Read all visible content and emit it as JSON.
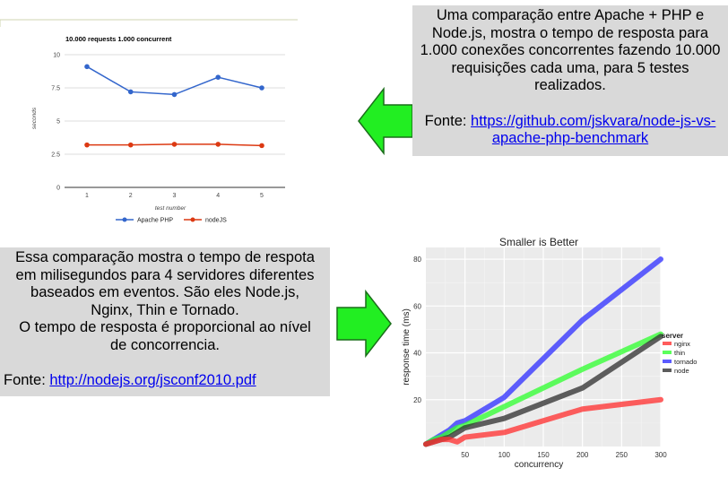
{
  "top_text": {
    "paragraph": "Uma comparação entre Apache + PHP e Node.js, mostra o tempo de resposta para 1.000 conexões concorrentes fazendo 10.000 requisições cada uma, para 5 testes realizados.",
    "source_label": "Fonte: ",
    "source_link": "https://github.com/jskvara/node-js-vs-apache-php-benchmark"
  },
  "bottom_text": {
    "lines": [
      "Essa comparação mostra o tempo de respota",
      "em milisegundos para 4 servidores diferentes",
      "baseados em eventos. São eles Node.js,",
      "Nginx, Thin e Tornado.",
      "O tempo de resposta é proporcional ao nível",
      "de concorrencia."
    ],
    "source_label": "Fonte: ",
    "source_link": "http://nodejs.org/jsconf2010.pdf"
  },
  "colors": {
    "arrow_fill": "#22ee22",
    "arrow_stroke": "#1a6e1a",
    "textbox_bg": "#d9d9d9"
  },
  "icons": [
    "right-arrow-icon",
    "left-arrow-icon"
  ],
  "chart_data": [
    {
      "type": "line",
      "title": "10.000 requests 1.000 concurrent",
      "xlabel": "test number",
      "ylabel": "seconds",
      "x": [
        1,
        2,
        3,
        4,
        5
      ],
      "ylim": [
        0,
        10
      ],
      "yticks": [
        "0",
        "2.5",
        "5",
        "7.5",
        "10"
      ],
      "grid": true,
      "legend_position": "bottom",
      "series": [
        {
          "name": "Apache PHP",
          "color": "#3366cc",
          "values": [
            9.1,
            7.2,
            7.0,
            8.3,
            7.5
          ]
        },
        {
          "name": "nodeJS",
          "color": "#dc3912",
          "values": [
            3.2,
            3.2,
            3.25,
            3.25,
            3.15
          ]
        }
      ]
    },
    {
      "type": "line",
      "title": "Smaller is Better",
      "xlabel": "concurrency",
      "ylabel": "response time (ms)",
      "xlim": [
        0,
        300
      ],
      "ylim": [
        0,
        85
      ],
      "xticks": [
        "50",
        "100",
        "150",
        "200",
        "250",
        "300"
      ],
      "yticks": [
        "20",
        "40",
        "60",
        "80"
      ],
      "grid": true,
      "legend_title": "server",
      "legend_position": "right",
      "series": [
        {
          "name": "nginx",
          "color": "#ff3333",
          "x": [
            0,
            10,
            20,
            30,
            40,
            50,
            100,
            200,
            300
          ],
          "values": [
            1,
            2,
            3,
            3,
            2,
            4,
            6,
            16,
            20
          ]
        },
        {
          "name": "thin",
          "color": "#33ff33",
          "x": [
            0,
            10,
            20,
            30,
            40,
            50,
            100,
            200,
            300
          ],
          "values": [
            1,
            3,
            4,
            6,
            8,
            9,
            17,
            33,
            48
          ]
        },
        {
          "name": "tornado",
          "color": "#3333ff",
          "x": [
            0,
            10,
            20,
            30,
            40,
            50,
            100,
            200,
            300
          ],
          "values": [
            1,
            3,
            5,
            7,
            10,
            11,
            21,
            54,
            80
          ]
        },
        {
          "name": "node",
          "color": "#333333",
          "x": [
            0,
            10,
            20,
            30,
            40,
            50,
            100,
            200,
            300
          ],
          "values": [
            1,
            2,
            3,
            4,
            6,
            8,
            12,
            25,
            47
          ]
        }
      ]
    }
  ]
}
